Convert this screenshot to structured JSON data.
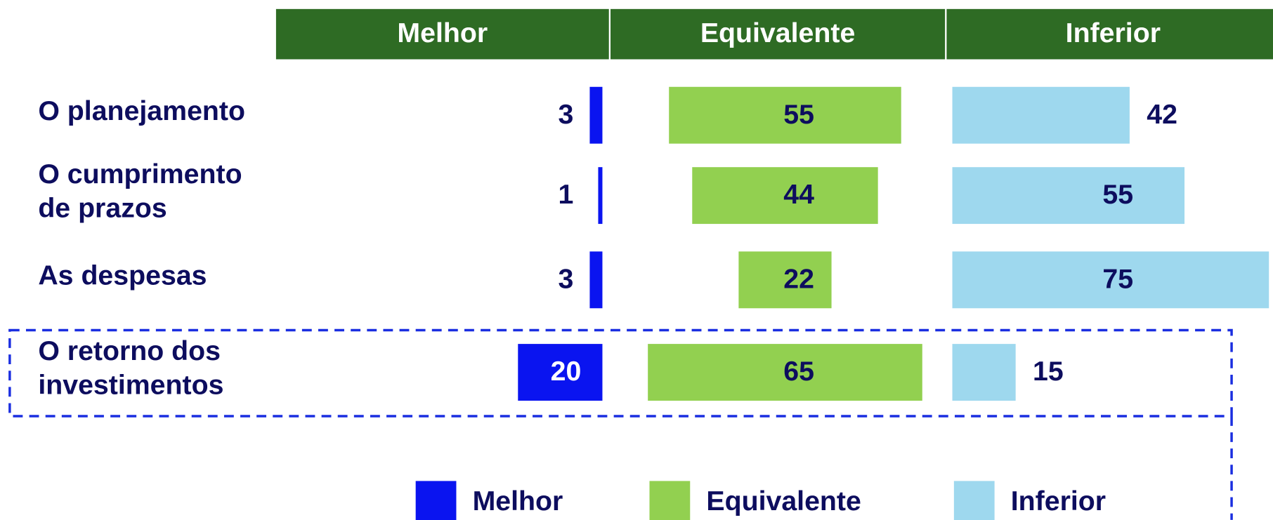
{
  "chart_data": {
    "type": "bar",
    "categories": [
      "O planejamento",
      "O cumprimento de prazos",
      "As despesas",
      "O retorno dos investimentos"
    ],
    "series": [
      {
        "name": "Melhor",
        "color": "#0a14f0",
        "values": [
          3,
          1,
          3,
          20
        ]
      },
      {
        "name": "Equivalente",
        "color": "#92d050",
        "values": [
          55,
          44,
          22,
          65
        ]
      },
      {
        "name": "Inferior",
        "color": "#9ed8ee",
        "values": [
          42,
          55,
          75,
          15
        ]
      }
    ],
    "legend": "bottom"
  }
}
